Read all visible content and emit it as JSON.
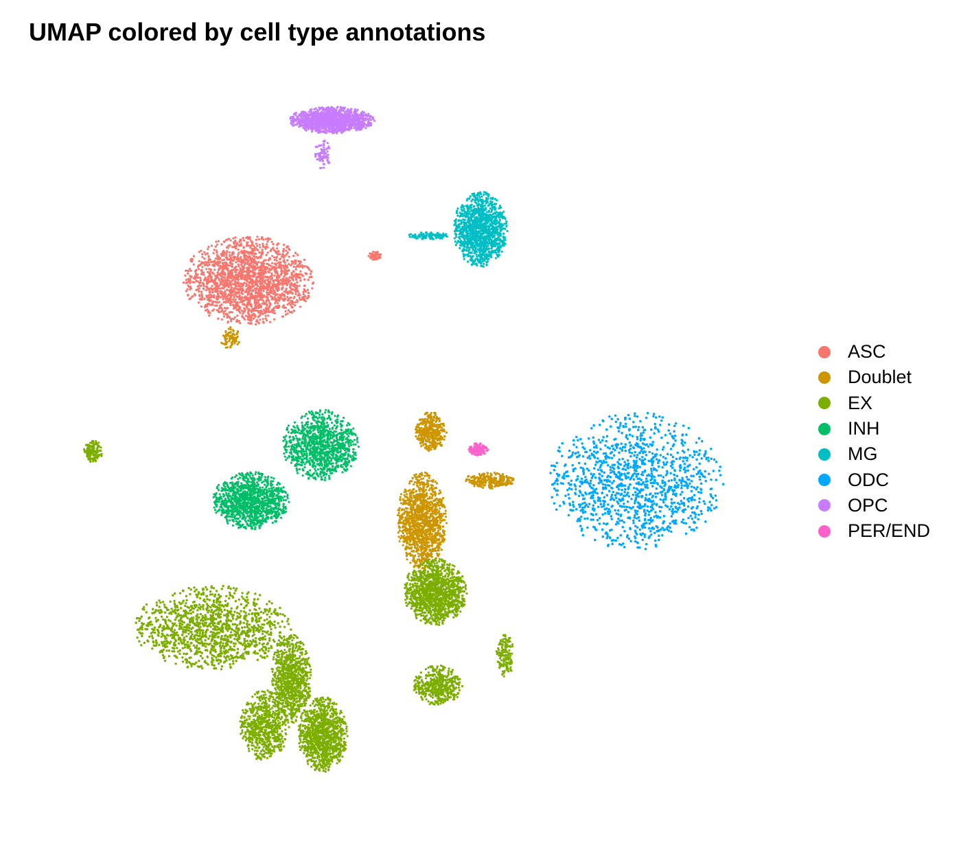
{
  "chart_data": {
    "type": "scatter",
    "title": "UMAP colored by cell type annotations",
    "xlabel": "",
    "ylabel": "",
    "grid": false,
    "legend_position": "right",
    "point_size": "small",
    "series": [
      {
        "name": "ASC",
        "color": "#F8766D",
        "clusters": [
          {
            "cx": -4.2,
            "cy": 5.4,
            "rx": 1.45,
            "ry": 1.0,
            "n": 2600
          },
          {
            "cx": -1.4,
            "cy": 5.95,
            "rx": 0.15,
            "ry": 0.1,
            "n": 60
          }
        ]
      },
      {
        "name": "Doublet",
        "color": "#CD9600",
        "clusters": [
          {
            "cx": -0.35,
            "cy": 0.0,
            "rx": 0.55,
            "ry": 1.1,
            "n": 1500
          },
          {
            "cx": -0.15,
            "cy": 2.0,
            "rx": 0.35,
            "ry": 0.45,
            "n": 400
          },
          {
            "cx": 1.15,
            "cy": 0.9,
            "rx": 0.55,
            "ry": 0.18,
            "n": 260
          },
          {
            "cx": -4.6,
            "cy": 4.1,
            "rx": 0.22,
            "ry": 0.25,
            "n": 90
          }
        ]
      },
      {
        "name": "EX",
        "color": "#7CAE00",
        "clusters": [
          {
            "cx": -5.0,
            "cy": -2.4,
            "rx": 1.75,
            "ry": 0.95,
            "n": 3300
          },
          {
            "cx": -3.25,
            "cy": -3.55,
            "rx": 0.45,
            "ry": 1.0,
            "n": 900
          },
          {
            "cx": -2.55,
            "cy": -4.8,
            "rx": 0.55,
            "ry": 0.85,
            "n": 1100
          },
          {
            "cx": -3.85,
            "cy": -4.6,
            "rx": 0.55,
            "ry": 0.8,
            "n": 700
          },
          {
            "cx": -0.05,
            "cy": -1.6,
            "rx": 0.7,
            "ry": 0.75,
            "n": 1700
          },
          {
            "cx": 0.0,
            "cy": -3.7,
            "rx": 0.55,
            "ry": 0.45,
            "n": 450
          },
          {
            "cx": 1.5,
            "cy": -3.0,
            "rx": 0.2,
            "ry": 0.55,
            "n": 150
          },
          {
            "cx": -7.65,
            "cy": 1.55,
            "rx": 0.22,
            "ry": 0.25,
            "n": 140
          }
        ]
      },
      {
        "name": "INH",
        "color": "#00BE67",
        "clusters": [
          {
            "cx": -2.6,
            "cy": 1.7,
            "rx": 0.85,
            "ry": 0.8,
            "n": 1100
          },
          {
            "cx": -4.15,
            "cy": 0.45,
            "rx": 0.85,
            "ry": 0.65,
            "n": 1200
          }
        ]
      },
      {
        "name": "MG",
        "color": "#00BFC4",
        "clusters": [
          {
            "cx": 0.95,
            "cy": 6.55,
            "rx": 0.6,
            "ry": 0.85,
            "n": 1800
          },
          {
            "cx": -0.2,
            "cy": 6.4,
            "rx": 0.45,
            "ry": 0.08,
            "n": 110
          }
        ]
      },
      {
        "name": "ODC",
        "color": "#00A9FF",
        "clusters": [
          {
            "cx": 4.4,
            "cy": 0.9,
            "rx": 1.95,
            "ry": 1.55,
            "n": 7500
          }
        ]
      },
      {
        "name": "OPC",
        "color": "#C77CFF",
        "clusters": [
          {
            "cx": -2.35,
            "cy": 9.0,
            "rx": 0.95,
            "ry": 0.3,
            "n": 1500
          },
          {
            "cx": -2.55,
            "cy": 8.25,
            "rx": 0.18,
            "ry": 0.35,
            "n": 80
          }
        ]
      },
      {
        "name": "PER/END",
        "color": "#FF61CC",
        "clusters": [
          {
            "cx": 0.9,
            "cy": 1.6,
            "rx": 0.22,
            "ry": 0.14,
            "n": 130
          }
        ]
      }
    ],
    "xlim": [
      -8.5,
      7.2
    ],
    "ylim": [
      -6.2,
      10.0
    ]
  }
}
